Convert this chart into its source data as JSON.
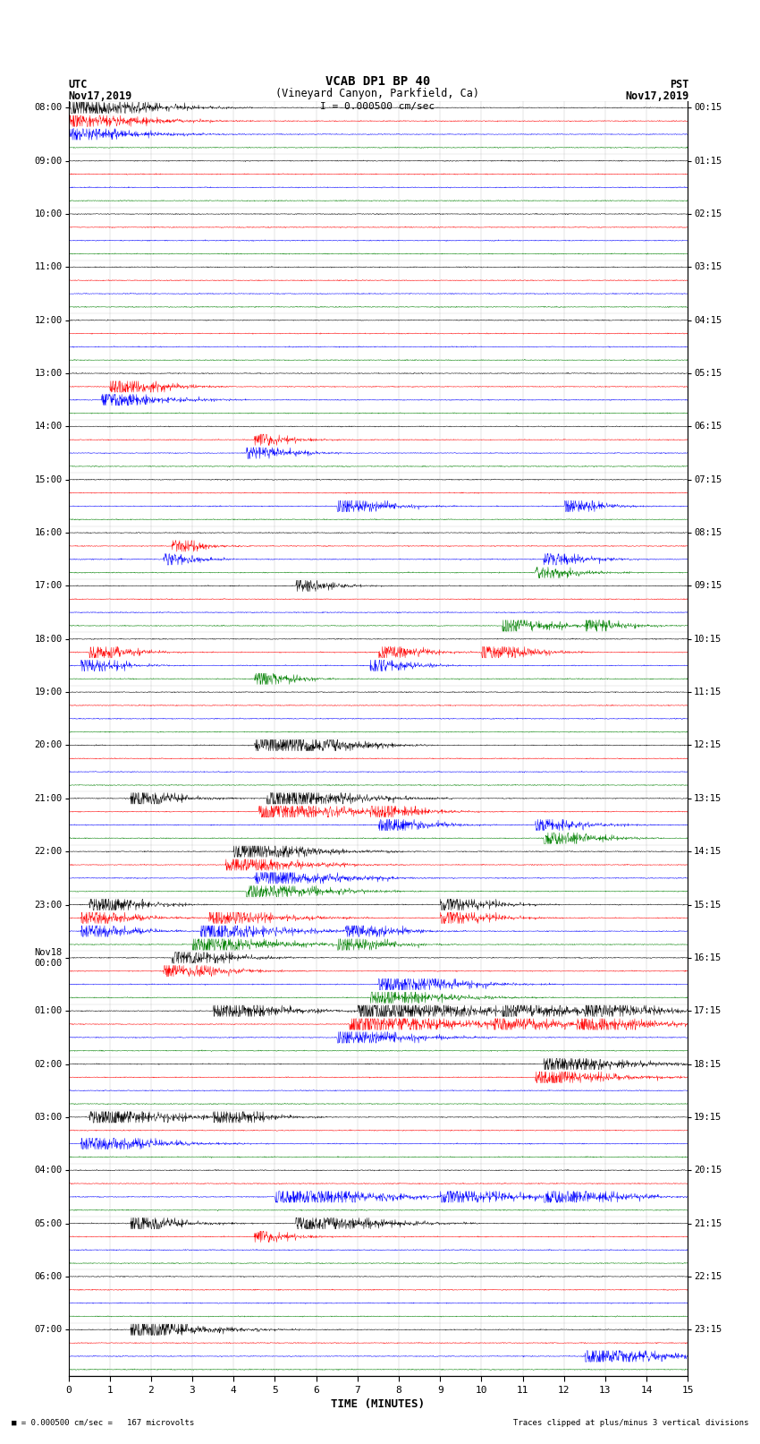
{
  "title_line1": "VCAB DP1 BP 40",
  "title_line2": "(Vineyard Canyon, Parkfield, Ca)",
  "scale_bar": "I = 0.000500 cm/sec",
  "left_header1": "UTC",
  "left_header2": "Nov17,2019",
  "right_header1": "PST",
  "right_header2": "Nov17,2019",
  "xlabel": "TIME (MINUTES)",
  "bottom_left": "■ = 0.000500 cm/sec =   167 microvolts",
  "bottom_right": "Traces clipped at plus/minus 3 vertical divisions",
  "trace_colors": [
    "black",
    "red",
    "blue",
    "green"
  ],
  "n_rows": 96,
  "minutes": 15,
  "xlim": [
    0,
    15
  ],
  "xticks": [
    0,
    1,
    2,
    3,
    4,
    5,
    6,
    7,
    8,
    9,
    10,
    11,
    12,
    13,
    14,
    15
  ],
  "utc_labels": [
    "08:00",
    "09:00",
    "10:00",
    "11:00",
    "12:00",
    "13:00",
    "14:00",
    "15:00",
    "16:00",
    "17:00",
    "18:00",
    "19:00",
    "20:00",
    "21:00",
    "22:00",
    "23:00",
    "Nov18\n00:00",
    "01:00",
    "02:00",
    "03:00",
    "04:00",
    "05:00",
    "06:00",
    "07:00"
  ],
  "pst_labels": [
    "00:15",
    "01:15",
    "02:15",
    "03:15",
    "04:15",
    "05:15",
    "06:15",
    "07:15",
    "08:15",
    "09:15",
    "10:15",
    "11:15",
    "12:15",
    "13:15",
    "14:15",
    "15:15",
    "16:15",
    "17:15",
    "18:15",
    "19:15",
    "20:15",
    "21:15",
    "22:15",
    "23:15"
  ],
  "background": "#ffffff",
  "vgrid_color": "#888888",
  "hline_color": "#888888"
}
